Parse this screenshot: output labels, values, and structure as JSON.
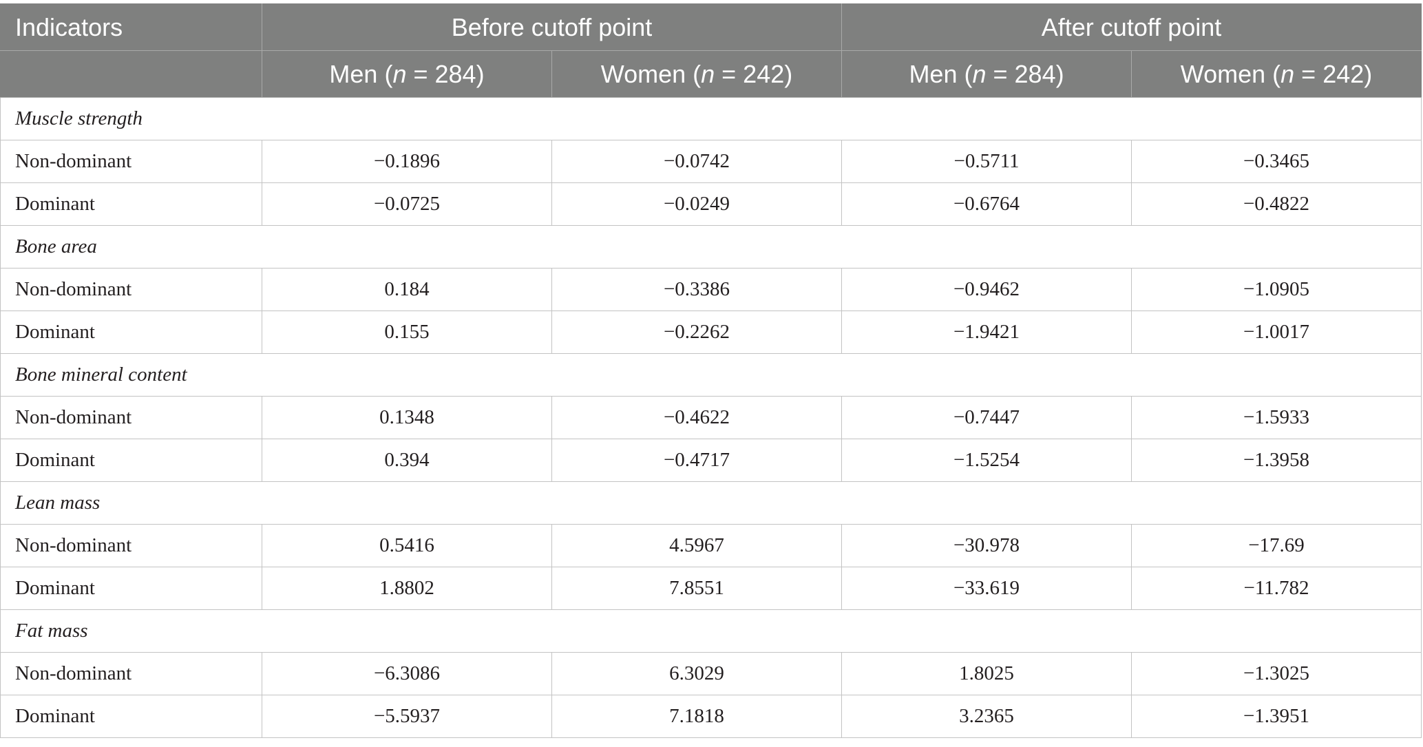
{
  "table": {
    "header": {
      "indicators": "Indicators",
      "groups": [
        "Before cutoff point",
        "After cutoff point"
      ],
      "subgroups": [
        {
          "pre": "Men (",
          "var": "n",
          "post": " = 284)"
        },
        {
          "pre": "Women (",
          "var": "n",
          "post": " = 242)"
        },
        {
          "pre": "Men (",
          "var": "n",
          "post": " = 284)"
        },
        {
          "pre": "Women (",
          "var": "n",
          "post": " = 242)"
        }
      ]
    },
    "sections": [
      {
        "title": "Muscle strength",
        "rows": [
          {
            "label": "Non-dominant",
            "values": [
              "−0.1896",
              "−0.0742",
              "−0.5711",
              "−0.3465"
            ]
          },
          {
            "label": "Dominant",
            "values": [
              "−0.0725",
              "−0.0249",
              "−0.6764",
              "−0.4822"
            ]
          }
        ]
      },
      {
        "title": "Bone area",
        "rows": [
          {
            "label": "Non-dominant",
            "values": [
              "0.184",
              "−0.3386",
              "−0.9462",
              "−1.0905"
            ]
          },
          {
            "label": "Dominant",
            "values": [
              "0.155",
              "−0.2262",
              "−1.9421",
              "−1.0017"
            ]
          }
        ]
      },
      {
        "title": "Bone mineral content",
        "rows": [
          {
            "label": "Non-dominant",
            "values": [
              "0.1348",
              "−0.4622",
              "−0.7447",
              "−1.5933"
            ]
          },
          {
            "label": "Dominant",
            "values": [
              "0.394",
              "−0.4717",
              "−1.5254",
              "−1.3958"
            ]
          }
        ]
      },
      {
        "title": "Lean mass",
        "rows": [
          {
            "label": "Non-dominant",
            "values": [
              "0.5416",
              "4.5967",
              "−30.978",
              "−17.69"
            ]
          },
          {
            "label": "Dominant",
            "values": [
              "1.8802",
              "7.8551",
              "−33.619",
              "−11.782"
            ]
          }
        ]
      },
      {
        "title": "Fat mass",
        "rows": [
          {
            "label": "Non-dominant",
            "values": [
              "−6.3086",
              "6.3029",
              "1.8025",
              "−1.3025"
            ]
          },
          {
            "label": "Dominant",
            "values": [
              "−5.5937",
              "7.1818",
              "3.2365",
              "−1.3951"
            ]
          }
        ]
      }
    ]
  },
  "colors": {
    "header_bg": "#7f807f",
    "header_text": "#ffffff",
    "header_line": "#a9aaa9",
    "grid": "#c3c3c3",
    "body_text": "#231f20"
  }
}
